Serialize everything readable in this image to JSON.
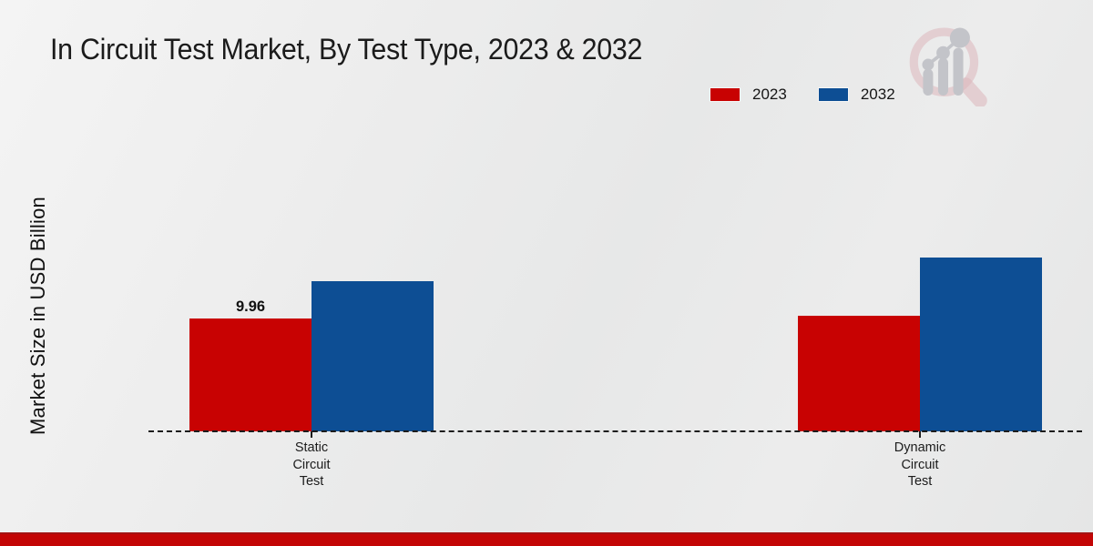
{
  "title": "In Circuit Test Market, By Test Type, 2023 & 2032",
  "ylabel": "Market Size in USD Billion",
  "legend": [
    {
      "label": "2023",
      "color": "#c80202"
    },
    {
      "label": "2032",
      "color": "#0d4e94"
    }
  ],
  "chart_data": {
    "type": "bar",
    "title": "In Circuit Test Market, By Test Type, 2023 & 2032",
    "xlabel": "",
    "ylabel": "Market Size in USD Billion",
    "categories": [
      "Static Circuit Test",
      "Dynamic Circuit Test"
    ],
    "series": [
      {
        "name": "2023",
        "color": "#c80202",
        "values": [
          9.96,
          10.2
        ]
      },
      {
        "name": "2032",
        "color": "#0d4e94",
        "values": [
          13.25,
          15.35
        ]
      }
    ],
    "value_label": {
      "text": "9.96",
      "series_index": 0,
      "category_index": 0
    },
    "baseline_style": "dashed",
    "grid": false,
    "legend_position": "top-right",
    "ylim": [
      0,
      16
    ]
  },
  "watermark": {
    "name": "market-research-magnifier-logo"
  },
  "footer": {
    "bar_color": "#c30505"
  }
}
